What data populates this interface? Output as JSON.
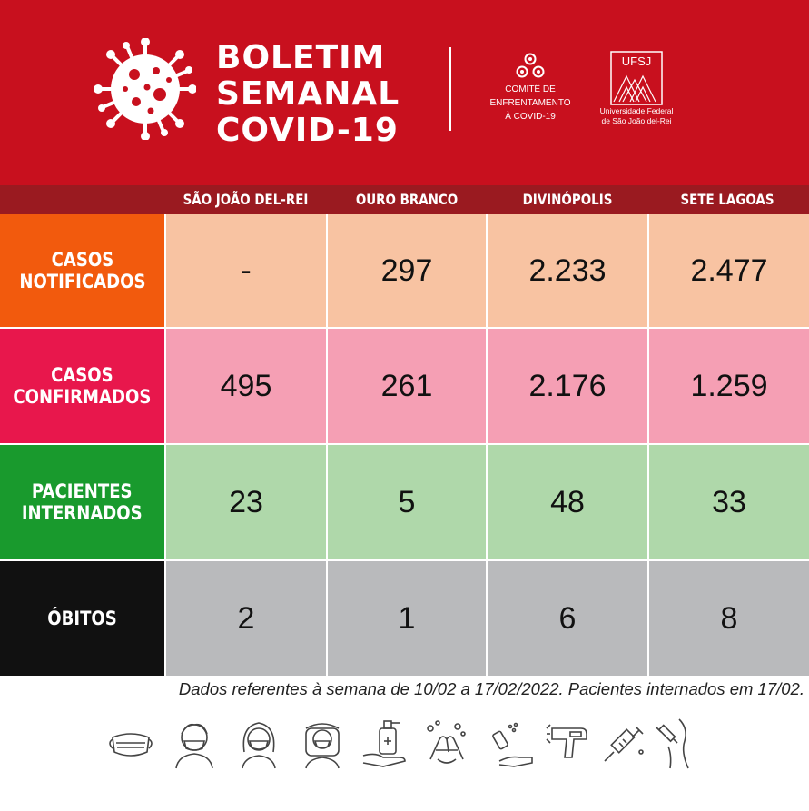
{
  "header": {
    "title_lines": [
      "BOLETIM",
      "SEMANAL",
      "COVID-19"
    ],
    "comite_lines": [
      "COMITÊ DE",
      "ENFRENTAMENTO",
      "À COVID-19"
    ],
    "ufsj_logo_text": "UFSJ",
    "ufsj_lines": [
      "Universidade Federal",
      "de São João del-Rei"
    ]
  },
  "columns": [
    "SÃO JOÃO DEL-REI",
    "OURO BRANCO",
    "DIVINÓPOLIS",
    "SETE LAGOAS"
  ],
  "rows": [
    {
      "label": "CASOS\nNOTIFICADOS",
      "values": [
        "-",
        "297",
        "2.233",
        "2.477"
      ]
    },
    {
      "label": "CASOS\nCONFIRMADOS",
      "values": [
        "495",
        "261",
        "2.176",
        "1.259"
      ]
    },
    {
      "label": "PACIENTES\nINTERNADOS",
      "values": [
        "23",
        "5",
        "48",
        "33"
      ]
    },
    {
      "label": "ÓBITOS",
      "values": [
        "2",
        "1",
        "6",
        "8"
      ]
    }
  ],
  "note": "Dados referentes à semana de 10/02 a 17/02/2022. Pacientes internados em 17/02.",
  "prevention_icons": [
    "mask-icon",
    "person-mask-icon",
    "woman-mask-icon",
    "face-shield-icon",
    "sanitizer-icon",
    "hand-washing-icon",
    "spray-hands-icon",
    "thermometer-icon",
    "syringe-icon",
    "vaccination-icon"
  ],
  "colors": {
    "header_red": "#c8101e",
    "column_bar": "#9a1a20",
    "row_label_colors": [
      "#f25a0d",
      "#e8174c",
      "#199a2d",
      "#111111"
    ],
    "row_cell_colors": [
      "#f8c3a2",
      "#f59fb4",
      "#afd8aa",
      "#b9babc"
    ]
  }
}
